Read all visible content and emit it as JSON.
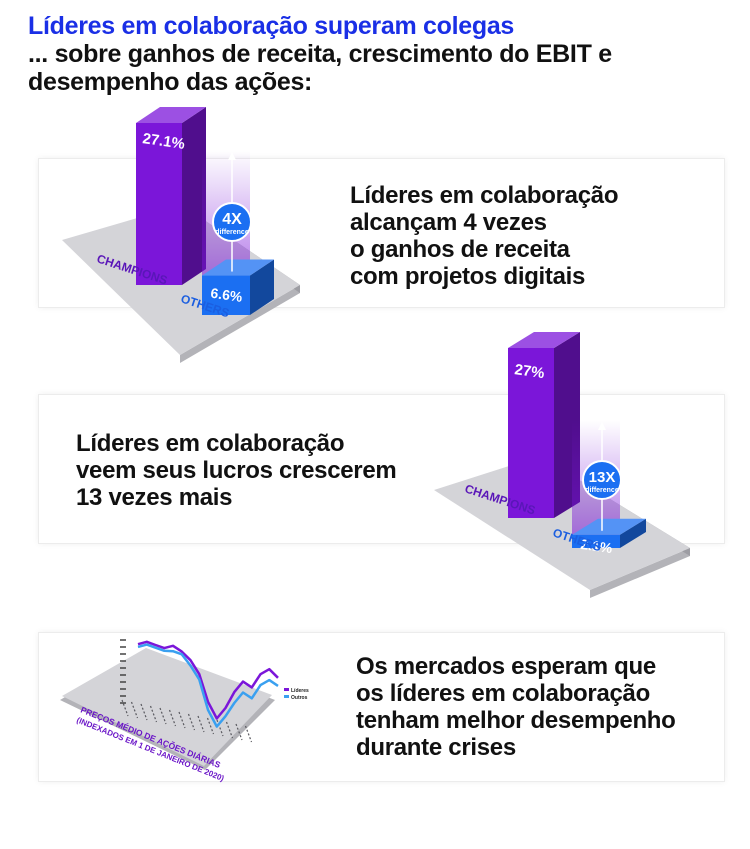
{
  "header": {
    "title": "Líderes em colaboração superam colegas",
    "subtitle": "... sobre ganhos de receita, crescimento do EBIT e desempenho das ações:"
  },
  "sections": [
    {
      "text": "Líderes em colaboração\nalcançam 4 vezes\no ganhos de receita\ncom projetos digitais"
    },
    {
      "text": "Líderes em colaboração\nveem seus lucros crescerem\n13 vezes mais"
    },
    {
      "text": "Os mercados esperam que\nos líderes em colaboração\ntenham melhor desempenho\ndurante crises"
    }
  ],
  "colors": {
    "champions": "#7b16d9",
    "others": "#1b6ff2",
    "platform": "#d4d4d8",
    "title_accent": "#1a2fe6"
  },
  "chart_data": [
    {
      "type": "bar",
      "categories": [
        "CHAMPIONS",
        "OTHERS"
      ],
      "values": [
        27.1,
        6.6
      ],
      "value_labels": [
        "27.1%",
        "6.6%"
      ],
      "badge": {
        "main": "4X",
        "sub": "difference"
      }
    },
    {
      "type": "bar",
      "categories": [
        "CHAMPIONS",
        "OTHERS"
      ],
      "values": [
        27,
        2.1
      ],
      "value_labels": [
        "27%",
        "2.1%"
      ],
      "badge": {
        "main": "13X",
        "sub": "difference"
      }
    },
    {
      "type": "line",
      "title": "PREÇOS MÉDIO DE AÇÕES DIÁRIAS",
      "subtitle": "(INDEXADOS EM 1 DE JANEIRO DE 2020)",
      "legend": [
        "Líderes",
        "Outros"
      ],
      "series": [
        {
          "name": "Líderes",
          "values": [
            1.0,
            1.01,
            1.0,
            0.99,
            1.0,
            0.98,
            0.95,
            0.9,
            0.8,
            0.74,
            0.78,
            0.84,
            0.88,
            0.86,
            0.91,
            0.93,
            0.9
          ]
        },
        {
          "name": "Outros",
          "values": [
            0.99,
            1.0,
            0.99,
            0.98,
            0.98,
            0.97,
            0.93,
            0.88,
            0.77,
            0.71,
            0.75,
            0.8,
            0.84,
            0.82,
            0.87,
            0.89,
            0.87
          ]
        }
      ]
    }
  ]
}
